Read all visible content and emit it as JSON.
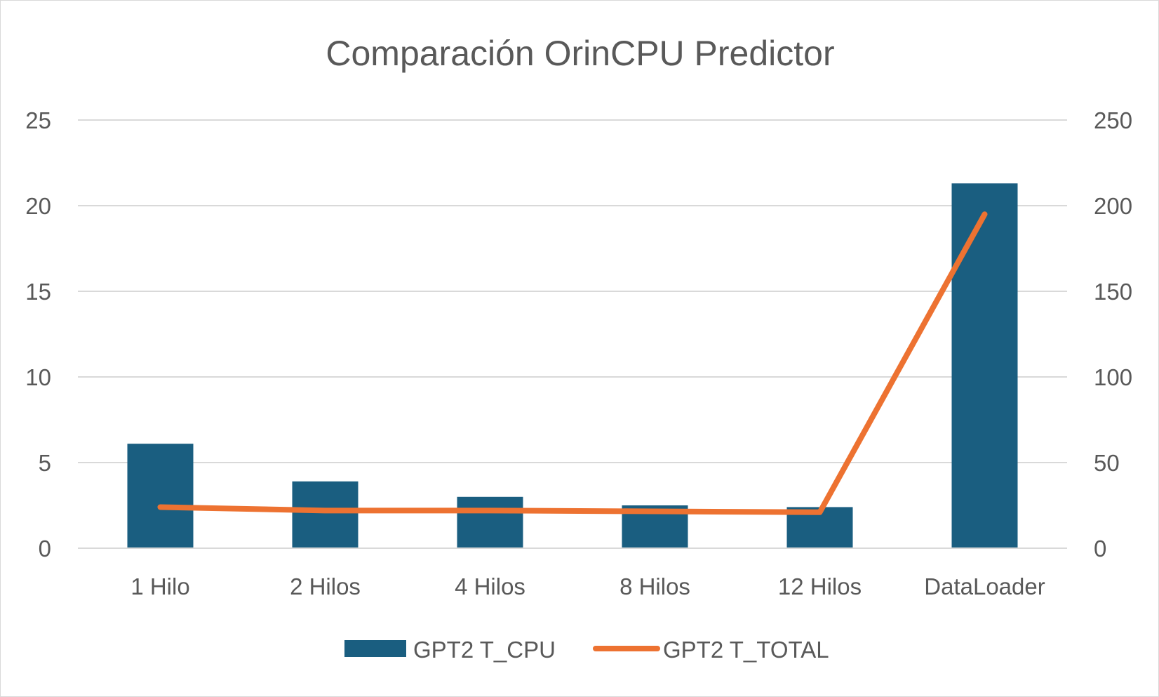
{
  "chart_data": {
    "type": "bar",
    "title": "Comparación OrinCPU Predictor",
    "categories": [
      "1 Hilo",
      "2 Hilos",
      "4 Hilos",
      "8 Hilos",
      "12 Hilos",
      "DataLoader"
    ],
    "series": [
      {
        "name": "GPT2 T_CPU",
        "type": "bar",
        "axis": "left",
        "color": "#1a5e80",
        "values": [
          6.1,
          3.9,
          3.0,
          2.5,
          2.4,
          21.3
        ]
      },
      {
        "name": "GPT2 T_TOTAL",
        "type": "line",
        "axis": "right",
        "color": "#ed7231",
        "values": [
          24,
          22,
          22,
          21.5,
          21,
          195
        ]
      }
    ],
    "y_left": {
      "ylim": [
        0,
        25
      ],
      "ticks": [
        "0",
        "5",
        "10",
        "15",
        "20",
        "25"
      ]
    },
    "y_right": {
      "ylim": [
        0,
        250
      ],
      "ticks": [
        "0",
        "50",
        "100",
        "150",
        "200",
        "250"
      ]
    },
    "grid": true,
    "legend": "bottom"
  }
}
